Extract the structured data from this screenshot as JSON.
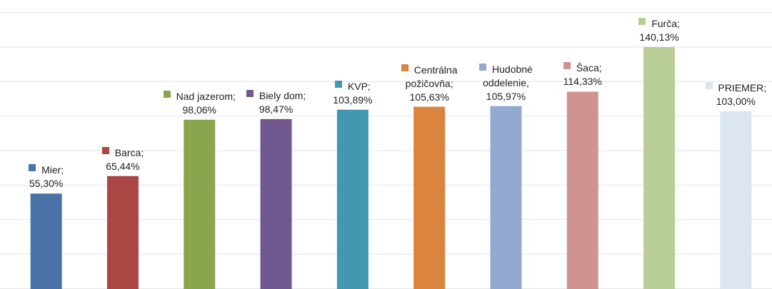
{
  "chart_data": {
    "type": "bar",
    "categories": [
      "Mier;",
      "Barca;",
      "Nad jazerom;",
      "Biely dom;",
      "KVP;",
      "Centrálna požičovňa;",
      "Hudobné oddelenie,",
      "Šaca;",
      "Furča;",
      "PRIEMER;"
    ],
    "values": [
      55.3,
      65.44,
      98.06,
      98.47,
      103.89,
      105.63,
      105.97,
      114.33,
      140.13,
      103.0
    ],
    "value_labels": [
      "55,30%",
      "65,44%",
      "98,06%",
      "98,47%",
      "103,89%",
      "105,63%",
      "105,97%",
      "114,33%",
      "140,13%",
      "103,00%"
    ],
    "colors": [
      "#4a72a8",
      "#aa4643",
      "#89a54e",
      "#71588f",
      "#4198af",
      "#db843d",
      "#93a9cf",
      "#d19392",
      "#b9cd96",
      "#dce6f2"
    ],
    "ylim": [
      0,
      160
    ],
    "yticks": [
      0,
      20,
      40,
      60,
      80,
      100,
      120,
      140,
      160
    ],
    "grid": true
  }
}
